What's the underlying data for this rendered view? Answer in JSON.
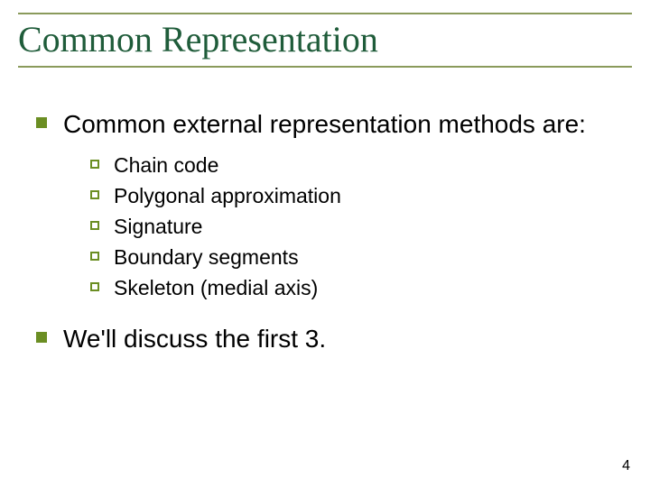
{
  "colors": {
    "title_text": "#1f5c3a",
    "rule": "#8a9a5b",
    "bullet_solid": "#6b8e23",
    "bullet_hollow_border": "#6b8e23",
    "body_text": "#000000",
    "background": "#ffffff"
  },
  "typography": {
    "title_font": "Times New Roman",
    "title_size_pt": 40,
    "body_font": "Arial",
    "lvl1_size_pt": 28,
    "lvl2_size_pt": 23,
    "page_num_size_pt": 16
  },
  "title": "Common Representation",
  "bullets": {
    "p1": "Common external representation methods are:",
    "sub": {
      "s1": "Chain code",
      "s2": "Polygonal approximation",
      "s3": "Signature",
      "s4": "Boundary segments",
      "s5": "Skeleton (medial axis)"
    },
    "p2": "We'll discuss the first 3."
  },
  "page_number": "4"
}
